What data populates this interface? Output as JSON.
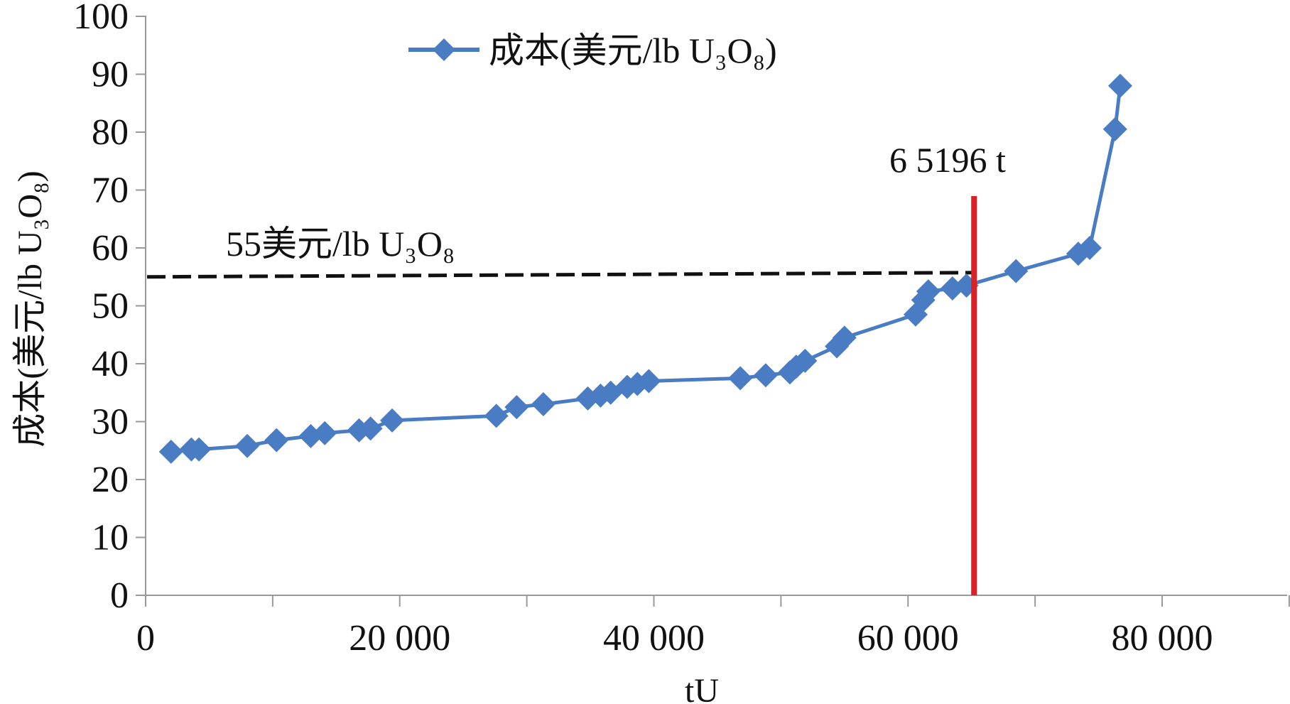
{
  "chart_data": {
    "type": "line",
    "xlabel": "tU",
    "ylabel": "成本(美元/lb U₃O₈)",
    "xlim": [
      0,
      90000
    ],
    "ylim": [
      0,
      100
    ],
    "x_ticks": [
      0,
      20000,
      40000,
      60000,
      80000
    ],
    "x_tick_labels": [
      "0",
      "20 000",
      "40 000",
      "60 000",
      "80 000"
    ],
    "y_ticks": [
      0,
      10,
      20,
      30,
      40,
      50,
      60,
      70,
      80,
      90,
      100
    ],
    "y_tick_labels": [
      "0",
      "10",
      "20",
      "30",
      "40",
      "50",
      "60",
      "70",
      "80",
      "90",
      "100"
    ],
    "grid": false,
    "legend_position": "top",
    "series": [
      {
        "name": "成本(美元/lb U₃O₈)",
        "color": "#4a7cc4",
        "marker": "diamond",
        "points": [
          [
            2000,
            24.8
          ],
          [
            3600,
            25.2
          ],
          [
            4200,
            25.2
          ],
          [
            8000,
            25.8
          ],
          [
            10300,
            26.8
          ],
          [
            13000,
            27.5
          ],
          [
            14100,
            28.0
          ],
          [
            16800,
            28.5
          ],
          [
            17700,
            28.8
          ],
          [
            19400,
            30.2
          ],
          [
            27600,
            31.0
          ],
          [
            29200,
            32.5
          ],
          [
            31300,
            33.0
          ],
          [
            34800,
            34.0
          ],
          [
            35800,
            34.5
          ],
          [
            36600,
            35.0
          ],
          [
            37900,
            36.0
          ],
          [
            38700,
            36.5
          ],
          [
            39600,
            37.0
          ],
          [
            46800,
            37.5
          ],
          [
            48800,
            38.0
          ],
          [
            50700,
            38.5
          ],
          [
            51200,
            39.5
          ],
          [
            51900,
            40.5
          ],
          [
            54400,
            43.0
          ],
          [
            55000,
            44.5
          ],
          [
            60600,
            48.5
          ],
          [
            61200,
            51.0
          ],
          [
            61600,
            52.5
          ],
          [
            63500,
            53.0
          ],
          [
            64600,
            53.5
          ],
          [
            68500,
            56.0
          ],
          [
            73400,
            59.0
          ],
          [
            74300,
            60.0
          ],
          [
            76300,
            80.5
          ],
          [
            76700,
            88.0
          ]
        ]
      }
    ],
    "annotations": {
      "reference_line_label": "55美元/lb U₃O₈",
      "reference_value": 55,
      "reference_color": "#111111",
      "vertical_line_label": "6 5196 t",
      "vertical_value": 65196,
      "vertical_color": "#dd1f26"
    }
  }
}
